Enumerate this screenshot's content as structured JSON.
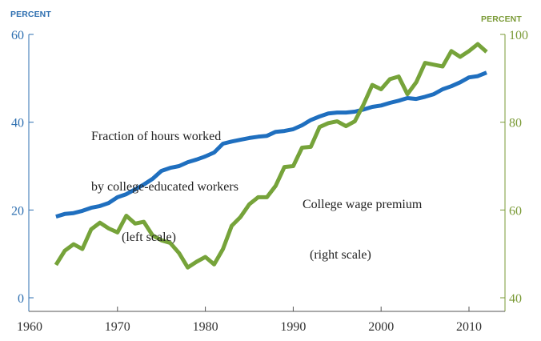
{
  "chart_data": {
    "type": "line",
    "title": "",
    "xlabel": "",
    "ylabel": "PERCENT",
    "y2label": "PERCENT",
    "xlim": [
      1960,
      2014
    ],
    "ylim": [
      0,
      60
    ],
    "y2lim": [
      40,
      100
    ],
    "x_ticks": [
      1960,
      1970,
      1980,
      1990,
      2000,
      2010
    ],
    "y_ticks": [
      0,
      20,
      40,
      60
    ],
    "y2_ticks": [
      40,
      60,
      80,
      100
    ],
    "grid": false,
    "legend": "inline annotations",
    "x": [
      1963,
      1964,
      1965,
      1966,
      1967,
      1968,
      1969,
      1970,
      1971,
      1972,
      1973,
      1974,
      1975,
      1976,
      1977,
      1978,
      1979,
      1980,
      1981,
      1982,
      1983,
      1984,
      1985,
      1986,
      1987,
      1988,
      1989,
      1990,
      1991,
      1992,
      1993,
      1994,
      1995,
      1996,
      1997,
      1998,
      1999,
      2000,
      2001,
      2002,
      2003,
      2004,
      2005,
      2006,
      2007,
      2008,
      2009,
      2010,
      2011,
      2012
    ],
    "series": [
      {
        "name": "Fraction of hours worked by college-educated workers (left scale)",
        "axis": "left",
        "color": "#1f6fbf",
        "values": [
          18.5,
          19.1,
          19.3,
          19.8,
          20.5,
          20.9,
          21.6,
          22.9,
          23.6,
          24.7,
          25.8,
          27.1,
          28.9,
          29.6,
          30.0,
          30.9,
          31.5,
          32.2,
          33.1,
          35.1,
          35.6,
          36.0,
          36.4,
          36.7,
          36.9,
          37.8,
          38.0,
          38.4,
          39.3,
          40.5,
          41.3,
          42.0,
          42.2,
          42.2,
          42.4,
          42.9,
          43.5,
          43.8,
          44.4,
          44.9,
          45.5,
          45.3,
          45.8,
          46.4,
          47.5,
          48.2,
          49.1,
          50.2,
          50.5,
          51.3
        ]
      },
      {
        "name": "College wage premium (right scale)",
        "axis": "right",
        "color": "#76a33a",
        "values": [
          47.5,
          50.7,
          52.2,
          51.1,
          55.6,
          57.1,
          55.8,
          54.9,
          58.7,
          56.9,
          57.3,
          54.2,
          53.1,
          52.5,
          50.2,
          46.9,
          48.2,
          49.3,
          47.6,
          51.1,
          56.4,
          58.4,
          61.3,
          62.9,
          62.9,
          65.5,
          69.8,
          70.0,
          74.2,
          74.4,
          78.9,
          79.8,
          80.2,
          79.1,
          80.2,
          84.0,
          88.5,
          87.5,
          89.8,
          90.4,
          86.4,
          89.1,
          93.5,
          93.1,
          92.7,
          96.2,
          94.9,
          96.2,
          97.8,
          96.0
        ]
      }
    ],
    "annotations": [
      {
        "text": "Fraction of hours worked\nby college-educated workers\n        (left scale)",
        "series": 0
      },
      {
        "text": "College wage premium\n  (right scale)",
        "series": 1
      }
    ]
  },
  "labels": {
    "left_unit": "PERCENT",
    "right_unit": "PERCENT",
    "ann_blue_1": "Fraction of hours worked",
    "ann_blue_2": "by college-educated workers",
    "ann_blue_3": "(left scale)",
    "ann_green_1": "College wage premium",
    "ann_green_2": "(right scale)"
  },
  "colors": {
    "left_axis": "#2e6fb0",
    "right_axis": "#7a9a36",
    "x_axis": "#555555",
    "blue_line": "#1f6fbf",
    "green_line": "#76a33a"
  }
}
